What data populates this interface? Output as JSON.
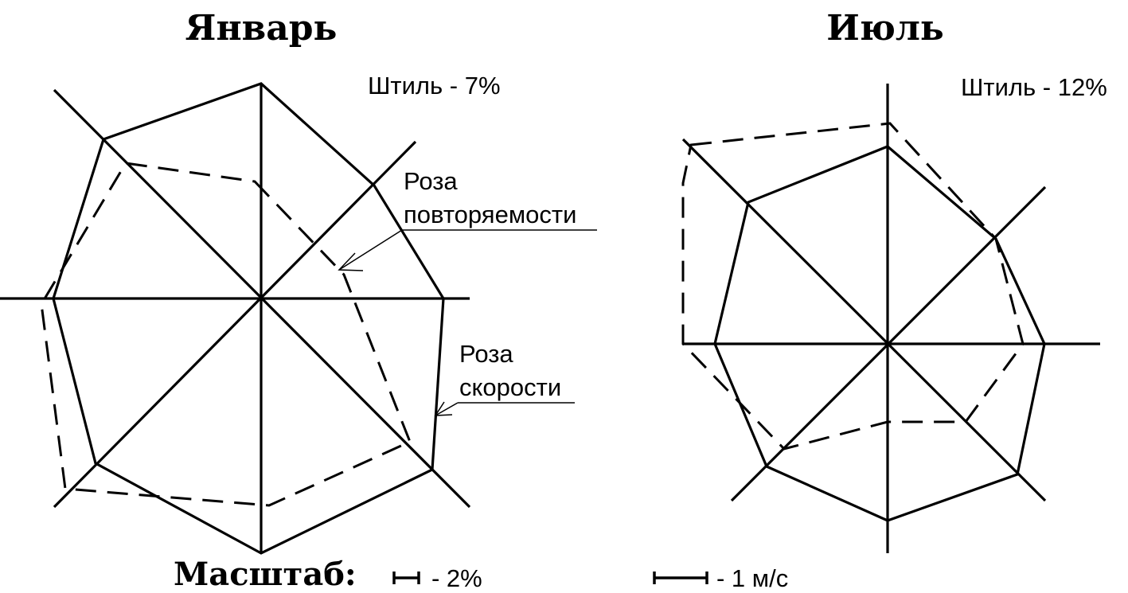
{
  "january": {
    "title": "Январь",
    "calm": "Штиль - 7%",
    "freq_label_line1": "Роза",
    "freq_label_line2": "повторяемости",
    "speed_label_line1": "Роза",
    "speed_label_line2": "скорости"
  },
  "july": {
    "title": "Июль",
    "calm": "Штиль - 12%"
  },
  "scale": {
    "title": "Масштаб:",
    "percent": "- 2%",
    "speed": "- 1 м/с"
  }
}
